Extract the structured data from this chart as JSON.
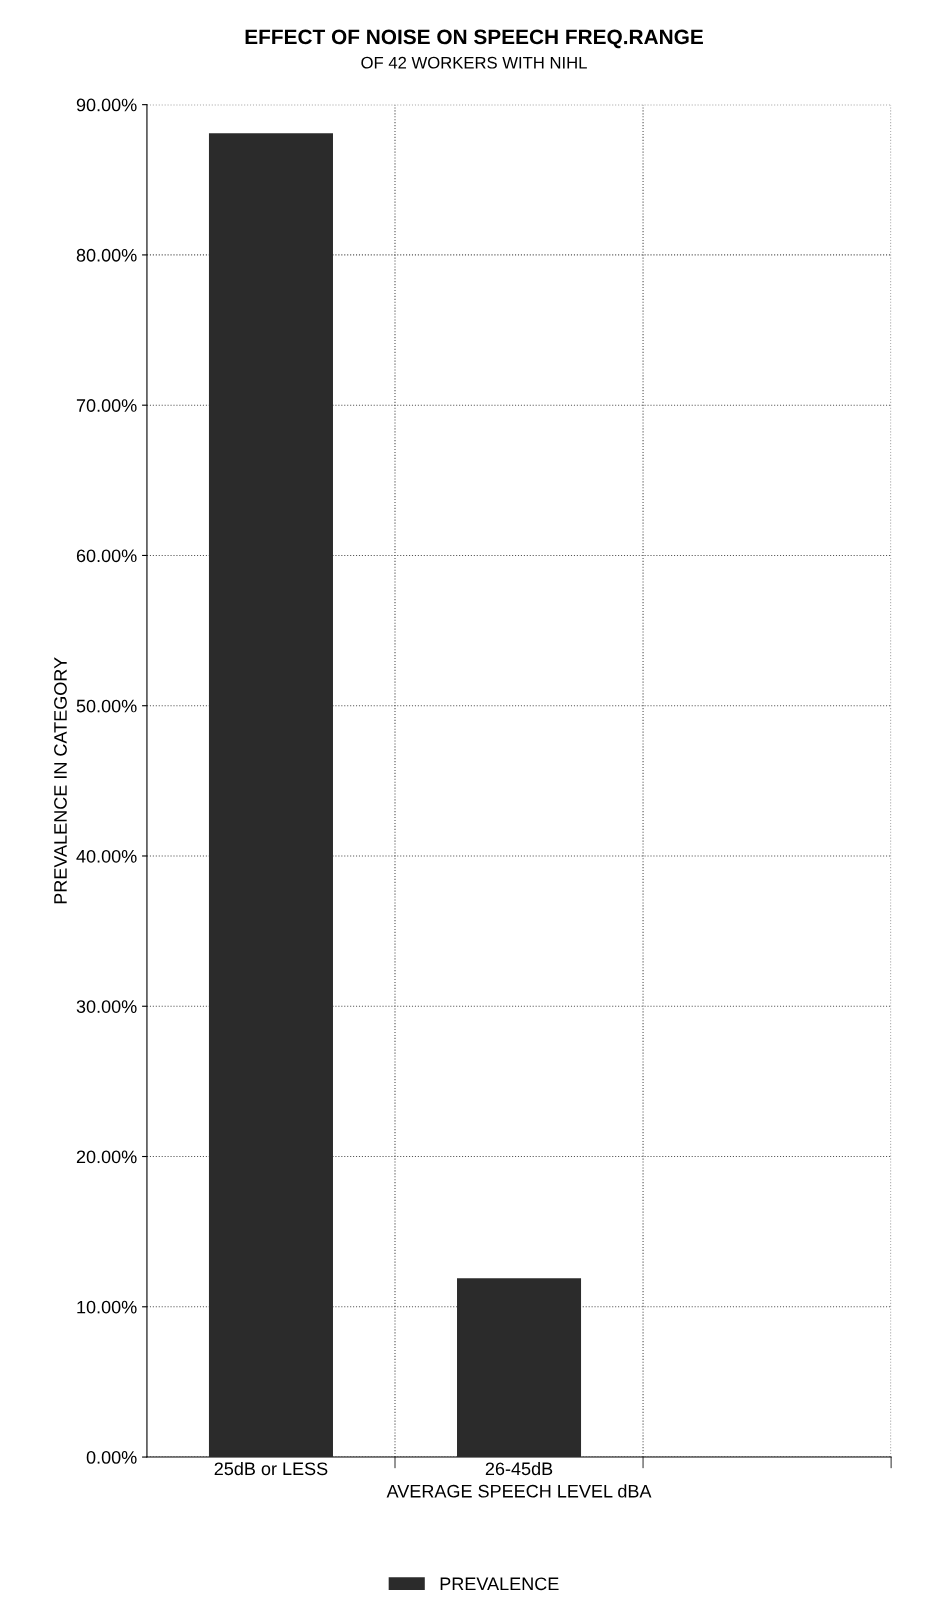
{
  "chart_data": {
    "type": "bar",
    "title": "EFFECT OF NOISE ON SPEECH FREQ.RANGE",
    "subtitle": "OF 42 WORKERS WITH NIHL",
    "xlabel": "AVERAGE SPEECH LEVEL dBA",
    "ylabel": "PREVALENCE IN CATEGORY",
    "categories": [
      "25dB or LESS",
      "26-45dB",
      null
    ],
    "series": [
      {
        "name": "PREVALENCE",
        "color": "#2b2b2b",
        "values": [
          88.1,
          11.9,
          null
        ]
      }
    ],
    "ylim": [
      0,
      90
    ],
    "yticks": [
      {
        "value": 0,
        "label": "0.00%"
      },
      {
        "value": 10,
        "label": "10.00%"
      },
      {
        "value": 20,
        "label": "20.00%"
      },
      {
        "value": 30,
        "label": "30.00%"
      },
      {
        "value": 40,
        "label": "40.00%"
      },
      {
        "value": 50,
        "label": "50.00%"
      },
      {
        "value": 60,
        "label": "60.00%"
      },
      {
        "value": 70,
        "label": "70.00%"
      },
      {
        "value": 80,
        "label": "80.00%"
      },
      {
        "value": 90,
        "label": "90.00%"
      }
    ],
    "grid": true,
    "legend": "bottom"
  }
}
